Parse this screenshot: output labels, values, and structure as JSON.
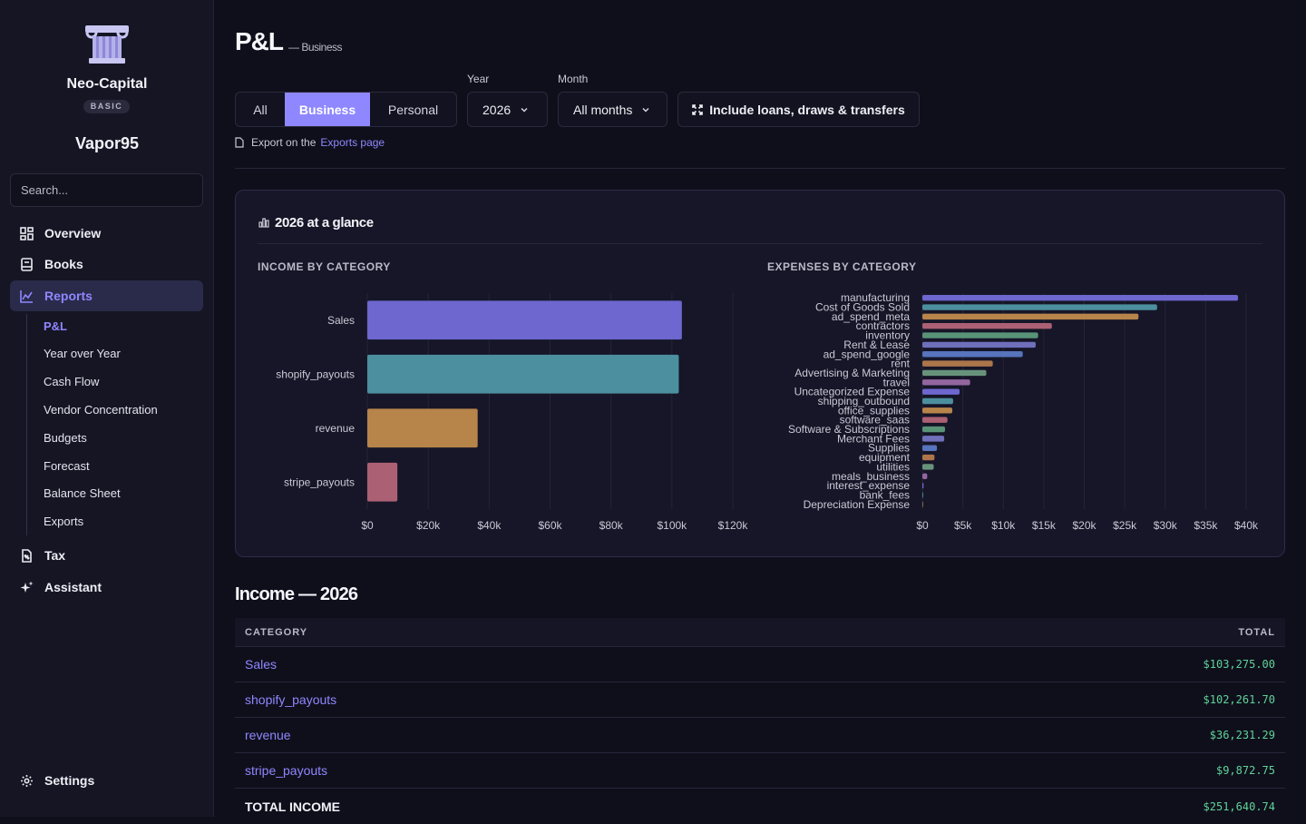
{
  "sidebar": {
    "brand": "Neo-Capital",
    "plan": "BASIC",
    "org": "Vapor95",
    "search_placeholder": "Search...",
    "nav": [
      {
        "label": "Overview",
        "icon": "grid-icon"
      },
      {
        "label": "Books",
        "icon": "book-icon"
      },
      {
        "label": "Reports",
        "icon": "chart-icon"
      },
      {
        "label": "Tax",
        "icon": "tax-file-icon"
      },
      {
        "label": "Assistant",
        "icon": "sparkle-icon"
      }
    ],
    "reports_sub": [
      "P&L",
      "Year over Year",
      "Cash Flow",
      "Vendor Concentration",
      "Budgets",
      "Forecast",
      "Balance Sheet",
      "Exports"
    ],
    "settings": "Settings"
  },
  "header": {
    "title": "P&L",
    "subtitle": "— Business",
    "scope_tabs": [
      "All",
      "Business",
      "Personal"
    ],
    "year_label": "Year",
    "year_value": "2026",
    "month_label": "Month",
    "month_value": "All months",
    "toggle_label": "Include loans, draws & transfers",
    "export_prefix": "Export on the",
    "export_link": "Exports page"
  },
  "glance": {
    "title": "2026 at a glance",
    "income_heading": "INCOME BY CATEGORY",
    "expenses_heading": "EXPENSES BY CATEGORY"
  },
  "colors": {
    "accent": "#8f87ff",
    "positive": "#5fd39a",
    "palette": [
      "#726cd8",
      "#4f96a4",
      "#c08a4c",
      "#b36478",
      "#5d9a7c",
      "#7474c4",
      "#5b79c4",
      "#b47a4c",
      "#6d9a80",
      "#9a6aa6"
    ]
  },
  "chart_data": [
    {
      "type": "bar",
      "orientation": "horizontal",
      "categories": [
        "Sales",
        "shopify_payouts",
        "revenue",
        "stripe_payouts"
      ],
      "values": [
        103275.0,
        102261.7,
        36231.29,
        9872.75
      ],
      "xlim": [
        0,
        120000
      ],
      "xticks": [
        "$0",
        "$20k",
        "$40k",
        "$60k",
        "$80k",
        "$100k",
        "$120k"
      ],
      "grid": true
    },
    {
      "type": "bar",
      "orientation": "horizontal",
      "categories": [
        "manufacturing",
        "Cost of Goods Sold",
        "ad_spend_meta",
        "contractors",
        "inventory",
        "Rent & Lease",
        "ad_spend_google",
        "rent",
        "Advertising & Marketing",
        "travel",
        "Uncategorized Expense",
        "shipping_outbound",
        "office_supplies",
        "software_saas",
        "Software & Subscriptions",
        "Merchant Fees",
        "Supplies",
        "equipment",
        "utilities",
        "meals_business",
        "interest_expense",
        "bank_fees",
        "Depreciation Expense"
      ],
      "values": [
        39000,
        29000,
        26700,
        16000,
        14300,
        14000,
        12400,
        8700,
        7900,
        5900,
        4600,
        3800,
        3700,
        3100,
        2800,
        2700,
        1800,
        1500,
        1400,
        600,
        150,
        100,
        80
      ],
      "xlim": [
        0,
        40000
      ],
      "xticks": [
        "$0",
        "$5k",
        "$10k",
        "$15k",
        "$20k",
        "$25k",
        "$30k",
        "$35k",
        "$40k"
      ],
      "grid": true
    }
  ],
  "income_table": {
    "title": "Income — 2026",
    "col_category": "CATEGORY",
    "col_total": "TOTAL",
    "rows": [
      {
        "category": "Sales",
        "total": "$103,275.00"
      },
      {
        "category": "shopify_payouts",
        "total": "$102,261.70"
      },
      {
        "category": "revenue",
        "total": "$36,231.29"
      },
      {
        "category": "stripe_payouts",
        "total": "$9,872.75"
      }
    ],
    "total_label": "TOTAL INCOME",
    "total_value": "$251,640.74"
  }
}
